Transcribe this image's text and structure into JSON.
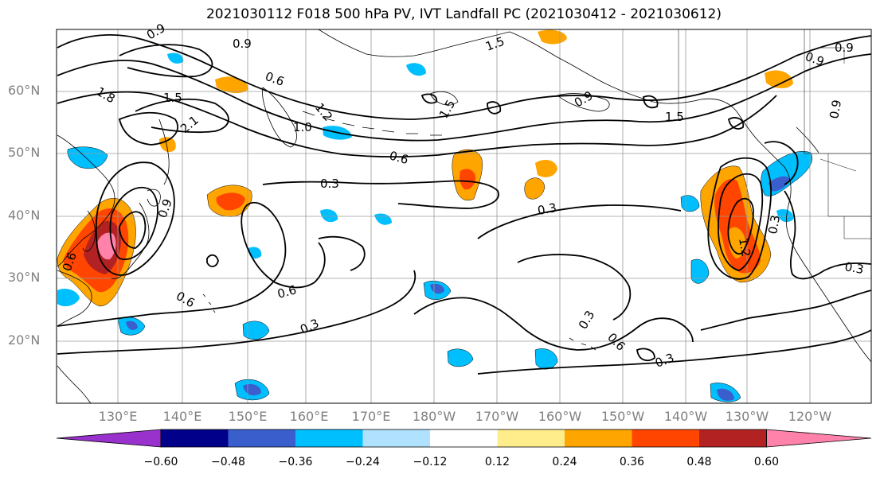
{
  "title": "2021030112 F018 500 hPa PV, IVT Landfall PC (2021030412 - 2021030612)",
  "lat_labels": [
    "60°N",
    "50°N",
    "40°N",
    "30°N",
    "20°N"
  ],
  "lon_labels": [
    "130°E",
    "140°E",
    "150°E",
    "160°E",
    "170°E",
    "180°W",
    "170°W",
    "160°W",
    "150°W",
    "140°W",
    "130°W",
    "120°W"
  ],
  "contour_labels": [
    {
      "text": "0.9"
    },
    {
      "text": "0.9"
    },
    {
      "text": "1.5"
    },
    {
      "text": "0.6"
    },
    {
      "text": "1.8"
    },
    {
      "text": "1.5"
    },
    {
      "text": "2.1"
    },
    {
      "text": "1.2"
    },
    {
      "text": "1.0"
    },
    {
      "text": "1.5"
    },
    {
      "text": "0.9"
    },
    {
      "text": "1.5"
    },
    {
      "text": "0.6"
    },
    {
      "text": "0.3"
    },
    {
      "text": "0.3"
    },
    {
      "text": "0.6"
    },
    {
      "text": "0.6"
    },
    {
      "text": "0.3"
    },
    {
      "text": "0.3"
    },
    {
      "text": "0.6"
    },
    {
      "text": "0.3"
    },
    {
      "text": "0.9"
    },
    {
      "text": "0.9"
    },
    {
      "text": "0.9"
    },
    {
      "text": "0.3"
    },
    {
      "text": "0.3"
    },
    {
      "text": "1.2"
    },
    {
      "text": "0.6"
    },
    {
      "text": "0.9"
    }
  ],
  "colorbar": {
    "ticks": [
      "−0.60",
      "−0.48",
      "−0.36",
      "−0.24",
      "−0.12",
      "0.12",
      "0.24",
      "0.36",
      "0.48",
      "0.60"
    ],
    "colors": [
      "#9932cc",
      "#00008b",
      "#3a5fcd",
      "#00bfff",
      "#b0e2ff",
      "#ffffff",
      "#ffec8b",
      "#ffa500",
      "#ff4500",
      "#b22222",
      "#ff82ab"
    ]
  },
  "shading_colors": {
    "neg_low": "#00bfff",
    "neg_mid": "#3a5fcd",
    "neg_high": "#00008b",
    "pos_low": "#ffec8b",
    "pos_mid": "#ffa500",
    "pos_high": "#ff4500",
    "pos_top": "#b22222",
    "pos_max": "#ff82ab"
  }
}
